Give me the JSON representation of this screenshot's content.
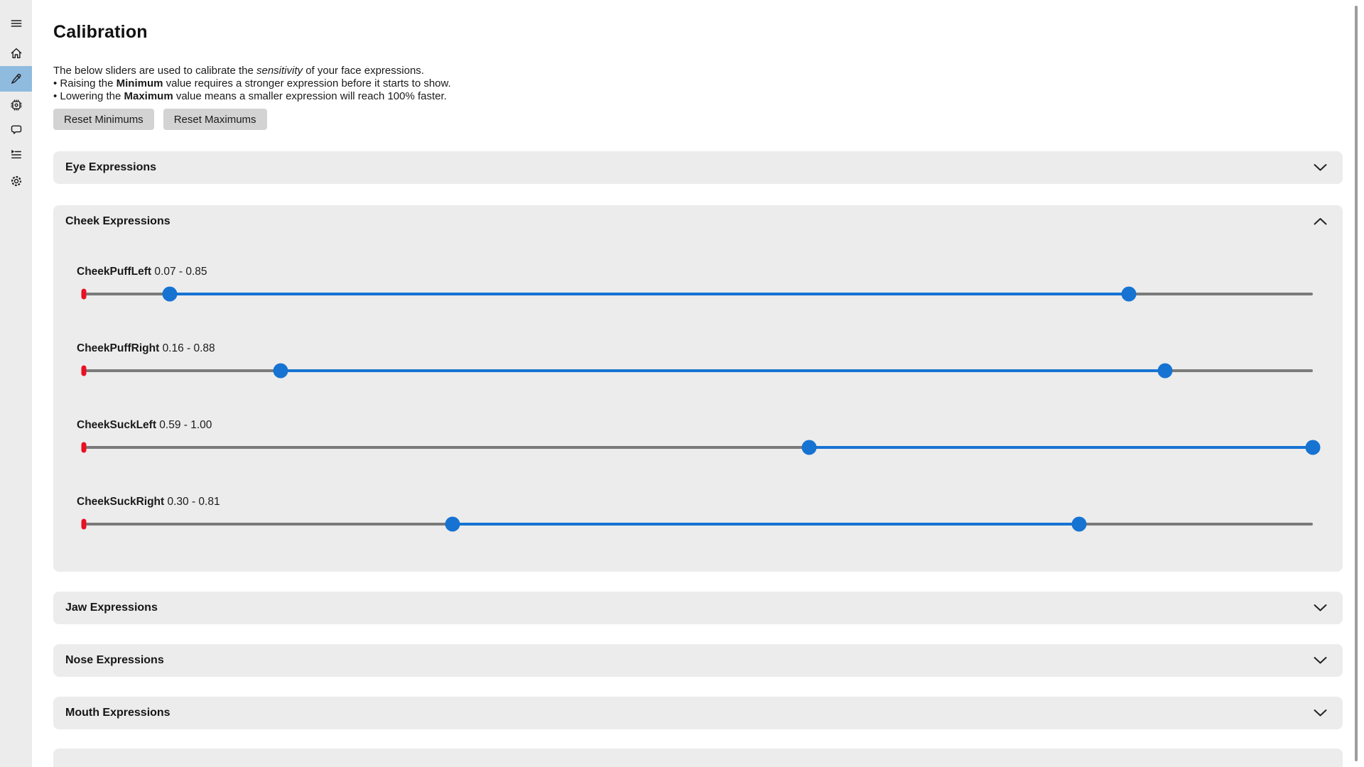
{
  "page": {
    "title": "Calibration"
  },
  "colors": {
    "accent_blue": "#1673d2",
    "tick_red": "#e81123",
    "sidebar_selected_blue": "#8fbbdf",
    "panel_gray": "#ececec",
    "button_gray": "#d3d3d3",
    "track_gray": "#7a7a7a"
  },
  "sidebar": {
    "items": [
      {
        "icon": "menu-icon",
        "selected": false
      },
      {
        "icon": "home-icon",
        "selected": false
      },
      {
        "icon": "pencil-icon",
        "selected": true
      },
      {
        "icon": "chip-icon",
        "selected": false
      },
      {
        "icon": "chat-icon",
        "selected": false
      },
      {
        "icon": "log-list-icon",
        "selected": false
      },
      {
        "icon": "gear-icon",
        "selected": false
      }
    ]
  },
  "intro": {
    "line1_pre": "The below sliders are used to calibrate the ",
    "line1_italic": "sensitivity",
    "line1_post": " of your face expressions.",
    "bullet1_pre": "• Raising the ",
    "bullet1_bold": "Minimum",
    "bullet1_post": " value requires a stronger expression before it starts to show.",
    "bullet2_pre": "• Lowering the ",
    "bullet2_bold": "Maximum",
    "bullet2_post": " value means a smaller expression will reach 100% faster."
  },
  "toolbar": {
    "reset_minimums_label": "Reset Minimums",
    "reset_maximums_label": "Reset Maximums"
  },
  "sections": [
    {
      "label": "Eye Expressions",
      "expanded": false
    },
    {
      "label": "Cheek Expressions",
      "expanded": true,
      "sliders": [
        {
          "name": "CheekPuffLeft",
          "range_text": "0.07 - 0.85",
          "min": 0.07,
          "max": 0.85
        },
        {
          "name": "CheekPuffRight",
          "range_text": "0.16 - 0.88",
          "min": 0.16,
          "max": 0.88
        },
        {
          "name": "CheekSuckLeft",
          "range_text": "0.59 - 1.00",
          "min": 0.59,
          "max": 1.0
        },
        {
          "name": "CheekSuckRight",
          "range_text": "0.30 - 0.81",
          "min": 0.3,
          "max": 0.81
        }
      ]
    },
    {
      "label": "Jaw Expressions",
      "expanded": false
    },
    {
      "label": "Nose Expressions",
      "expanded": false
    },
    {
      "label": "Mouth Expressions",
      "expanded": false
    },
    {
      "label": "",
      "expanded": false,
      "cutoff": true
    }
  ]
}
